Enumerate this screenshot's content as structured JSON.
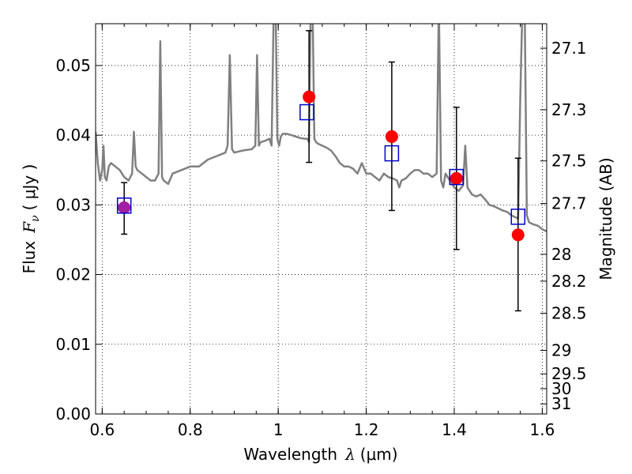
{
  "chart_data": {
    "type": "scatter",
    "xlabel_text": "Wavelength",
    "xlabel_symbol": "λ",
    "xlabel_unit": "(μm)",
    "ylabel_text": "Flux",
    "ylabel_symbol": "F",
    "ylabel_subscript": "ν",
    "ylabel_unit": "( μJy )",
    "y2label": "Magnitude (AB)",
    "xlim": [
      0.585,
      1.61
    ],
    "ylim": [
      0.0,
      0.056
    ],
    "grid": true,
    "x_ticks": [
      0.6,
      0.8,
      1.0,
      1.2,
      1.4,
      1.6
    ],
    "x_tick_labels": [
      "0.6",
      "0.8",
      "1",
      "1.2",
      "1.4",
      "1.6"
    ],
    "y_ticks": [
      0.0,
      0.01,
      0.02,
      0.03,
      0.04,
      0.05
    ],
    "y_tick_labels": [
      "0.00",
      "0.01",
      "0.02",
      "0.03",
      "0.04",
      "0.05"
    ],
    "y2_ticks": [
      {
        "label": "27.1",
        "mag": 27.1
      },
      {
        "label": "27.3",
        "mag": 27.3
      },
      {
        "label": "27.5",
        "mag": 27.5
      },
      {
        "label": "27.7",
        "mag": 27.7
      },
      {
        "label": "28",
        "mag": 28.0
      },
      {
        "label": "28.2",
        "mag": 28.2
      },
      {
        "label": "28.5",
        "mag": 28.5
      },
      {
        "label": "29",
        "mag": 29.0
      },
      {
        "label": "29.5",
        "mag": 29.5
      },
      {
        "label": "30",
        "mag": 30.0
      },
      {
        "label": "31",
        "mag": 31.0
      }
    ],
    "colors": {
      "model": "#808080",
      "observed": "#ff0000",
      "model_photometry": "#0000cc",
      "errorbar": "#000000",
      "overlap": "#a020a0"
    },
    "series": [
      {
        "name": "observed",
        "x": [
          0.65,
          1.07,
          1.258,
          1.405,
          1.545
        ],
        "y": [
          0.0296,
          0.0455,
          0.0398,
          0.0338,
          0.0257
        ],
        "yerr_low": [
          0.0258,
          0.0361,
          0.0292,
          0.0236,
          0.0148
        ],
        "yerr_high": [
          0.0332,
          0.055,
          0.0505,
          0.044,
          0.0367
        ]
      },
      {
        "name": "model_photometry",
        "x": [
          0.65,
          1.065,
          1.258,
          1.405,
          1.545
        ],
        "y": [
          0.0299,
          0.0433,
          0.0374,
          0.034,
          0.0283
        ]
      },
      {
        "name": "model_spectrum",
        "x": [
          0.585,
          0.59,
          0.595,
          0.6,
          0.603,
          0.606,
          0.61,
          0.615,
          0.62,
          0.63,
          0.64,
          0.65,
          0.66,
          0.668,
          0.672,
          0.676,
          0.68,
          0.69,
          0.7,
          0.71,
          0.72,
          0.728,
          0.732,
          0.736,
          0.74,
          0.75,
          0.76,
          0.78,
          0.8,
          0.82,
          0.84,
          0.86,
          0.88,
          0.885,
          0.89,
          0.895,
          0.9,
          0.92,
          0.94,
          0.948,
          0.952,
          0.956,
          0.96,
          0.97,
          0.98,
          0.985,
          0.99,
          0.994,
          0.998,
          1.002,
          1.006,
          1.01,
          1.02,
          1.03,
          1.04,
          1.05,
          1.06,
          1.066,
          1.07,
          1.074,
          1.078,
          1.082,
          1.086,
          1.09,
          1.1,
          1.11,
          1.12,
          1.13,
          1.14,
          1.15,
          1.16,
          1.17,
          1.18,
          1.19,
          1.2,
          1.21,
          1.22,
          1.23,
          1.24,
          1.25,
          1.26,
          1.27,
          1.275,
          1.28,
          1.29,
          1.3,
          1.31,
          1.32,
          1.33,
          1.34,
          1.35,
          1.36,
          1.365,
          1.37,
          1.375,
          1.38,
          1.39,
          1.4,
          1.41,
          1.42,
          1.425,
          1.43,
          1.44,
          1.45,
          1.46,
          1.47,
          1.48,
          1.49,
          1.5,
          1.51,
          1.52,
          1.53,
          1.54,
          1.545,
          1.55,
          1.555,
          1.56,
          1.565,
          1.57,
          1.58,
          1.59,
          1.6,
          1.61
        ],
        "y": [
          0.0405,
          0.036,
          0.0335,
          0.035,
          0.0385,
          0.034,
          0.0335,
          0.0355,
          0.036,
          0.0355,
          0.035,
          0.034,
          0.0335,
          0.0345,
          0.0405,
          0.0355,
          0.035,
          0.0345,
          0.034,
          0.0335,
          0.0335,
          0.0345,
          0.0535,
          0.034,
          0.0335,
          0.033,
          0.0345,
          0.035,
          0.0355,
          0.0355,
          0.0365,
          0.037,
          0.0375,
          0.0385,
          0.0515,
          0.038,
          0.0375,
          0.0378,
          0.038,
          0.0385,
          0.0515,
          0.0385,
          0.039,
          0.0392,
          0.0395,
          0.0385,
          0.059,
          0.059,
          0.0395,
          0.0385,
          0.0398,
          0.0402,
          0.0402,
          0.04,
          0.0398,
          0.0396,
          0.0395,
          0.0395,
          0.039,
          0.059,
          0.059,
          0.0395,
          0.039,
          0.0388,
          0.0385,
          0.0382,
          0.0378,
          0.037,
          0.036,
          0.0355,
          0.0355,
          0.0352,
          0.0345,
          0.036,
          0.0345,
          0.0345,
          0.034,
          0.0335,
          0.0345,
          0.034,
          0.0338,
          0.0335,
          0.0325,
          0.0335,
          0.0338,
          0.0345,
          0.035,
          0.035,
          0.0345,
          0.0345,
          0.034,
          0.0345,
          0.059,
          0.0335,
          0.0325,
          0.0345,
          0.0335,
          0.0325,
          0.032,
          0.0328,
          0.0385,
          0.0325,
          0.0315,
          0.0312,
          0.0315,
          0.0308,
          0.03,
          0.0298,
          0.0295,
          0.0292,
          0.029,
          0.0285,
          0.0282,
          0.028,
          0.0455,
          0.059,
          0.059,
          0.0285,
          0.0275,
          0.0272,
          0.027,
          0.0265,
          0.0262
        ]
      }
    ]
  }
}
